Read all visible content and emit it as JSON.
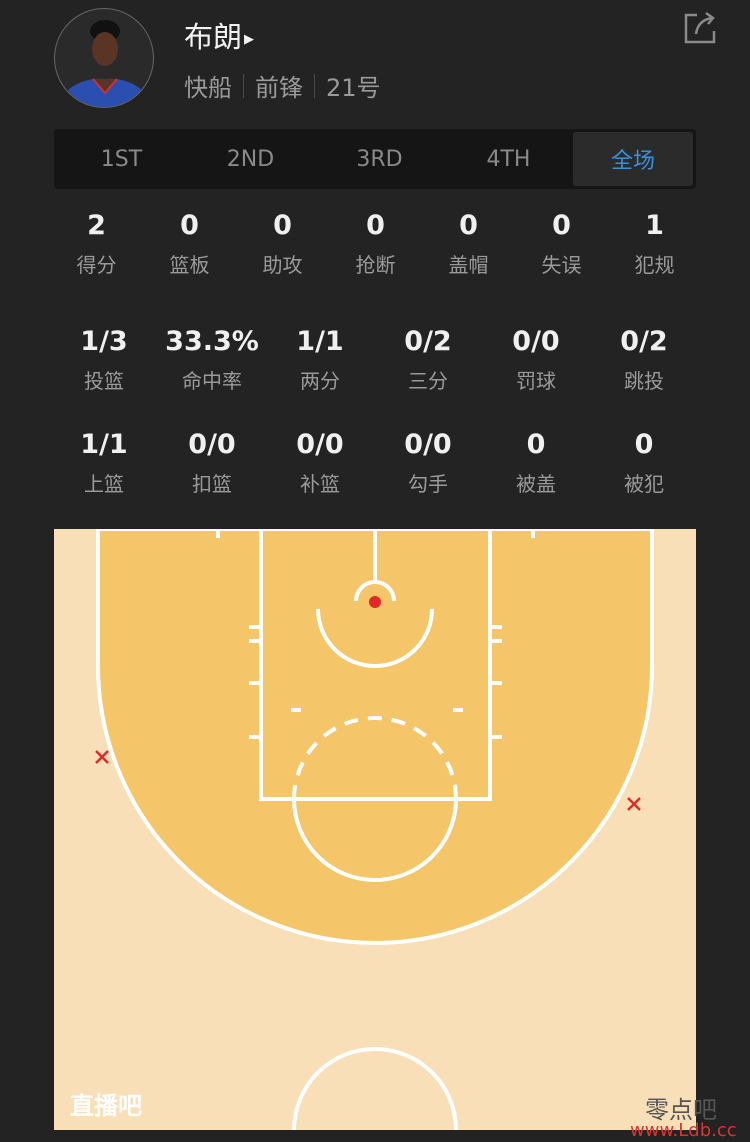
{
  "player": {
    "name": "布朗",
    "team": "快船",
    "position": "前锋",
    "number": "21号"
  },
  "tabs": [
    {
      "label": "1ST"
    },
    {
      "label": "2ND"
    },
    {
      "label": "3RD"
    },
    {
      "label": "4TH"
    },
    {
      "label": "全场",
      "active": true
    }
  ],
  "accent": "#3d8fd8",
  "stats_main": [
    {
      "value": "2",
      "label": "得分"
    },
    {
      "value": "0",
      "label": "篮板"
    },
    {
      "value": "0",
      "label": "助攻"
    },
    {
      "value": "0",
      "label": "抢断"
    },
    {
      "value": "0",
      "label": "盖帽"
    },
    {
      "value": "0",
      "label": "失误"
    },
    {
      "value": "1",
      "label": "犯规"
    }
  ],
  "stats_shooting": [
    {
      "value": "1/3",
      "label": "投篮"
    },
    {
      "value": "33.3%",
      "label": "命中率"
    },
    {
      "value": "1/1",
      "label": "两分"
    },
    {
      "value": "0/2",
      "label": "三分"
    },
    {
      "value": "0/0",
      "label": "罚球"
    },
    {
      "value": "0/2",
      "label": "跳投"
    }
  ],
  "stats_detail": [
    {
      "value": "1/1",
      "label": "上篮"
    },
    {
      "value": "0/0",
      "label": "扣篮"
    },
    {
      "value": "0/0",
      "label": "补篮"
    },
    {
      "value": "0/0",
      "label": "勾手"
    },
    {
      "value": "0",
      "label": "被盖"
    },
    {
      "value": "0",
      "label": "被犯"
    }
  ],
  "shot_chart": {
    "shots": [
      {
        "result": "made",
        "zone": "at rim"
      },
      {
        "result": "missed",
        "zone": "left corner three"
      },
      {
        "result": "missed",
        "zone": "right wing three"
      }
    ],
    "colors": {
      "made": "#e02a2a",
      "missed": "#e02a2a",
      "paint_area": "#f5c56a",
      "outer": "#f8dfb8"
    },
    "watermark": "直播吧"
  },
  "overlay_watermark": {
    "text": "零点吧",
    "url": "www.Ldb.cc"
  }
}
